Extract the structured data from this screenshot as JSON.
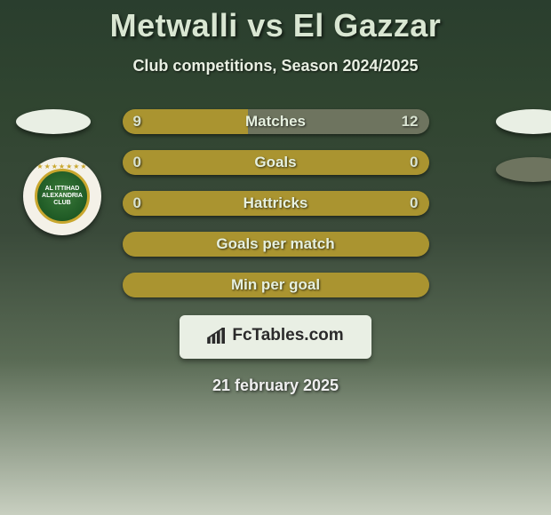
{
  "title": "Metwalli vs El Gazzar",
  "subtitle": "Club competitions, Season 2024/2025",
  "date": "21 february 2025",
  "brand": "FcTables.com",
  "colors": {
    "olive": "#aa9430",
    "olive_dark": "#8a7a28",
    "neutral_fill": "#6e745f",
    "pill_bg": "#e9efe4",
    "text_light": "#e6f0df"
  },
  "bars": [
    {
      "label": "Matches",
      "left": "9",
      "right": "12",
      "left_pct": 41,
      "right_pct": 59,
      "left_color": "#aa9430",
      "right_color": "#6e745f"
    },
    {
      "label": "Goals",
      "left": "0",
      "right": "0",
      "left_pct": 0,
      "right_pct": 100,
      "left_color": "#aa9430",
      "right_color": "#aa9430",
      "solid": true
    },
    {
      "label": "Hattricks",
      "left": "0",
      "right": "0",
      "left_pct": 0,
      "right_pct": 100,
      "left_color": "#aa9430",
      "right_color": "#aa9430",
      "solid": true
    },
    {
      "label": "Goals per match",
      "left": "",
      "right": "",
      "left_pct": 0,
      "right_pct": 100,
      "left_color": "#aa9430",
      "right_color": "#aa9430",
      "solid": true
    },
    {
      "label": "Min per goal",
      "left": "",
      "right": "",
      "left_pct": 0,
      "right_pct": 100,
      "left_color": "#aa9430",
      "right_color": "#aa9430",
      "solid": true
    }
  ],
  "badge": {
    "line1": "AL ITTIHAD",
    "line2": "ALEXANDRIA CLUB"
  }
}
